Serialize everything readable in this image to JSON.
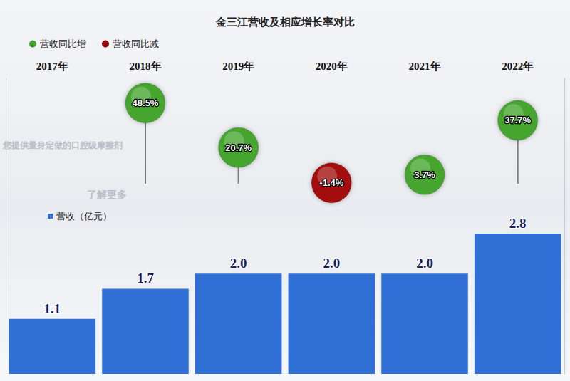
{
  "chart_data": {
    "type": "bar",
    "title": "金三江营收及相应增长率对比",
    "categories": [
      "2017年",
      "2018年",
      "2019年",
      "2020年",
      "2021年",
      "2022年"
    ],
    "series": [
      {
        "name": "营收（亿元）",
        "type": "bar",
        "color": "#2f6fd6",
        "values": [
          1.1,
          1.7,
          2.0,
          2.0,
          2.0,
          2.8
        ],
        "value_labels": [
          "1.1",
          "1.7",
          "2.0",
          "2.0",
          "2.0",
          "2.8"
        ]
      },
      {
        "name": "营收同比增",
        "type": "bubble",
        "axis": "y2",
        "color": "#45a52e",
        "values": [
          null,
          48.5,
          20.7,
          null,
          3.7,
          37.7
        ],
        "value_labels": [
          null,
          "48.5%",
          "20.7%",
          null,
          "3.7%",
          "37.7%"
        ]
      },
      {
        "name": "营收同比减",
        "type": "bubble",
        "axis": "y2",
        "color": "#a3090b",
        "values": [
          null,
          null,
          null,
          -1.4,
          null,
          null
        ],
        "value_labels": [
          null,
          null,
          null,
          "-1.4%",
          null,
          null
        ]
      }
    ],
    "ylim": [
      0,
      5.9
    ],
    "yticks": [],
    "y2lim": [
      -121,
      64
    ],
    "y2ticks": [],
    "tick_labels": false,
    "data_labels": true,
    "annotations": [
      "您提供量身定做的口腔级摩擦剂",
      "了解更多"
    ]
  }
}
